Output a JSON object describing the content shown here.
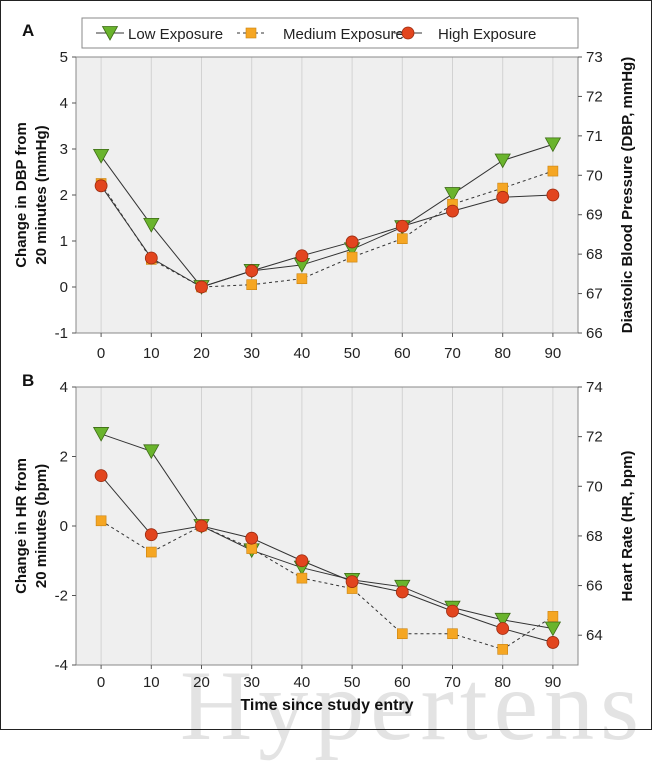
{
  "watermark": "Hypertens",
  "chart_data": [
    {
      "type": "line",
      "panel_letter": "A",
      "x": [
        0,
        10,
        20,
        30,
        40,
        50,
        60,
        70,
        80,
        90
      ],
      "xticks": [
        "0",
        "10",
        "20",
        "30",
        "40",
        "50",
        "60",
        "70",
        "80",
        "90"
      ],
      "xlabel": "",
      "ylabel": [
        "Change in DBP from",
        "20 minutes (mmHg)"
      ],
      "ylabel_right": "Diastolic Blood Pressure (DBP, mmHg)",
      "ylim": [
        -1,
        5
      ],
      "yticks": [
        "-1",
        "0",
        "1",
        "2",
        "3",
        "4",
        "5"
      ],
      "ylim_right": [
        66,
        73
      ],
      "yticks_right": [
        "66",
        "67",
        "68",
        "69",
        "70",
        "71",
        "72",
        "73"
      ],
      "grid": "vertical",
      "legend": "top",
      "series": [
        {
          "name": "Low Exposure",
          "marker": "triangle-down",
          "color": "#6ab42d",
          "dash": "solid",
          "values": [
            2.85,
            1.35,
            0.0,
            0.35,
            0.48,
            0.82,
            1.3,
            2.02,
            2.75,
            3.1
          ]
        },
        {
          "name": "Medium Exposure",
          "marker": "square",
          "color": "#f5a623",
          "dash": "dashed",
          "values": [
            2.25,
            0.6,
            0.0,
            0.05,
            0.18,
            0.65,
            1.05,
            1.8,
            2.15,
            2.52
          ]
        },
        {
          "name": "High Exposure",
          "marker": "circle",
          "color": "#e2451e",
          "dash": "solid",
          "values": [
            2.2,
            0.63,
            0.0,
            0.35,
            0.68,
            0.98,
            1.32,
            1.65,
            1.95,
            2.0
          ]
        }
      ]
    },
    {
      "type": "line",
      "panel_letter": "B",
      "x": [
        0,
        10,
        20,
        30,
        40,
        50,
        60,
        70,
        80,
        90
      ],
      "xticks": [
        "0",
        "10",
        "20",
        "30",
        "40",
        "50",
        "60",
        "70",
        "80",
        "90"
      ],
      "xlabel": "Time since study entry",
      "ylabel": [
        "Change in HR from",
        "20 minutes (bpm)"
      ],
      "ylabel_right": "Heart Rate (HR, bpm)",
      "ylim": [
        -4,
        4
      ],
      "yticks": [
        "-4",
        "-2",
        "0",
        "2",
        "4"
      ],
      "ylim_right": [
        62.8,
        74
      ],
      "yticks_right": [
        "64",
        "66",
        "68",
        "70",
        "72",
        "74"
      ],
      "grid": "vertical",
      "legend": "none",
      "series": [
        {
          "name": "Low Exposure",
          "marker": "triangle-down",
          "color": "#6ab42d",
          "dash": "solid",
          "values": [
            2.65,
            2.15,
            0.0,
            -0.7,
            -1.2,
            -1.55,
            -1.75,
            -2.35,
            -2.7,
            -2.95
          ]
        },
        {
          "name": "Medium Exposure",
          "marker": "square",
          "color": "#f5a623",
          "dash": "dashed",
          "values": [
            0.15,
            -0.75,
            0.0,
            -0.65,
            -1.5,
            -1.8,
            -3.1,
            -3.1,
            -3.55,
            -2.6
          ]
        },
        {
          "name": "High Exposure",
          "marker": "circle",
          "color": "#e2451e",
          "dash": "solid",
          "values": [
            1.45,
            -0.25,
            0.0,
            -0.35,
            -1.0,
            -1.6,
            -1.9,
            -2.45,
            -2.95,
            -3.35
          ]
        }
      ]
    }
  ]
}
